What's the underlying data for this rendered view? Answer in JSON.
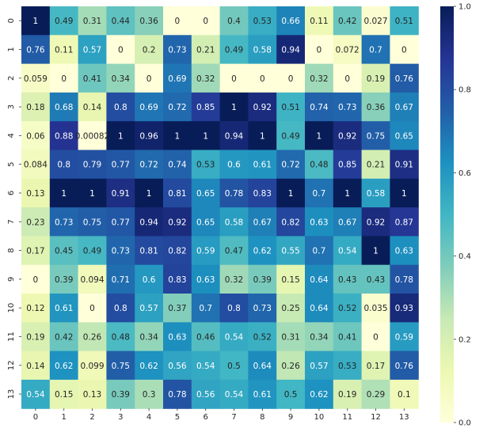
{
  "chart_data": {
    "type": "heatmap",
    "x_labels": [
      "0",
      "1",
      "2",
      "3",
      "4",
      "5",
      "6",
      "7",
      "8",
      "9",
      "10",
      "11",
      "12",
      "13"
    ],
    "y_labels": [
      "0",
      "1",
      "2",
      "3",
      "4",
      "5",
      "6",
      "7",
      "8",
      "9",
      "10",
      "11",
      "12",
      "13"
    ],
    "values": [
      [
        1,
        0.49,
        0.31,
        0.44,
        0.36,
        0,
        0,
        0.4,
        0.53,
        0.66,
        0.11,
        0.42,
        0.027,
        0.51
      ],
      [
        0.76,
        0.11,
        0.57,
        0,
        0.2,
        0.73,
        0.21,
        0.49,
        0.58,
        0.94,
        0,
        0.072,
        0.7,
        0
      ],
      [
        0.059,
        0,
        0.41,
        0.34,
        0,
        0.69,
        0.32,
        0,
        0,
        0,
        0.32,
        0,
        0.19,
        0.76
      ],
      [
        0.18,
        0.68,
        0.14,
        0.8,
        0.69,
        0.72,
        0.85,
        1,
        0.92,
        0.51,
        0.74,
        0.73,
        0.36,
        0.67
      ],
      [
        0.06,
        0.88,
        0.00082,
        1,
        0.96,
        1,
        1,
        0.94,
        1,
        0.49,
        1,
        0.92,
        0.75,
        0.65
      ],
      [
        0.084,
        0.8,
        0.79,
        0.77,
        0.72,
        0.74,
        0.53,
        0.6,
        0.61,
        0.72,
        0.48,
        0.85,
        0.21,
        0.91
      ],
      [
        0.13,
        1,
        1,
        0.91,
        1,
        0.81,
        0.65,
        0.78,
        0.83,
        1,
        0.7,
        1,
        0.58,
        1
      ],
      [
        0.23,
        0.73,
        0.75,
        0.77,
        0.94,
        0.92,
        0.65,
        0.58,
        0.67,
        0.82,
        0.63,
        0.67,
        0.92,
        0.87
      ],
      [
        0.17,
        0.45,
        0.49,
        0.73,
        0.81,
        0.82,
        0.59,
        0.47,
        0.62,
        0.55,
        0.7,
        0.54,
        1,
        0.63
      ],
      [
        0,
        0.39,
        0.094,
        0.71,
        0.6,
        0.83,
        0.63,
        0.32,
        0.39,
        0.15,
        0.64,
        0.43,
        0.43,
        0.78
      ],
      [
        0.12,
        0.61,
        0,
        0.8,
        0.57,
        0.37,
        0.7,
        0.8,
        0.73,
        0.25,
        0.64,
        0.52,
        0.035,
        0.93
      ],
      [
        0.19,
        0.42,
        0.26,
        0.48,
        0.34,
        0.63,
        0.46,
        0.54,
        0.52,
        0.31,
        0.34,
        0.41,
        0,
        0.59
      ],
      [
        0.14,
        0.62,
        0.099,
        0.75,
        0.62,
        0.56,
        0.54,
        0.5,
        0.64,
        0.26,
        0.57,
        0.53,
        0.17,
        0.76
      ],
      [
        0.54,
        0.15,
        0.13,
        0.39,
        0.3,
        0.78,
        0.56,
        0.54,
        0.61,
        0.5,
        0.62,
        0.19,
        0.29,
        0.1
      ]
    ],
    "value_labels": [
      [
        "1",
        "0.49",
        "0.31",
        "0.44",
        "0.36",
        "0",
        "0",
        "0.4",
        "0.53",
        "0.66",
        "0.11",
        "0.42",
        "0.027",
        "0.51"
      ],
      [
        "0.76",
        "0.11",
        "0.57",
        "0",
        "0.2",
        "0.73",
        "0.21",
        "0.49",
        "0.58",
        "0.94",
        "0",
        "0.072",
        "0.7",
        "0"
      ],
      [
        "0.059",
        "0",
        "0.41",
        "0.34",
        "0",
        "0.69",
        "0.32",
        "0",
        "0",
        "0",
        "0.32",
        "0",
        "0.19",
        "0.76"
      ],
      [
        "0.18",
        "0.68",
        "0.14",
        "0.8",
        "0.69",
        "0.72",
        "0.85",
        "1",
        "0.92",
        "0.51",
        "0.74",
        "0.73",
        "0.36",
        "0.67"
      ],
      [
        "0.06",
        "0.88",
        "0.00082",
        "1",
        "0.96",
        "1",
        "1",
        "0.94",
        "1",
        "0.49",
        "1",
        "0.92",
        "0.75",
        "0.65"
      ],
      [
        "0.084",
        "0.8",
        "0.79",
        "0.77",
        "0.72",
        "0.74",
        "0.53",
        "0.6",
        "0.61",
        "0.72",
        "0.48",
        "0.85",
        "0.21",
        "0.91"
      ],
      [
        "0.13",
        "1",
        "1",
        "0.91",
        "1",
        "0.81",
        "0.65",
        "0.78",
        "0.83",
        "1",
        "0.7",
        "1",
        "0.58",
        "1"
      ],
      [
        "0.23",
        "0.73",
        "0.75",
        "0.77",
        "0.94",
        "0.92",
        "0.65",
        "0.58",
        "0.67",
        "0.82",
        "0.63",
        "0.67",
        "0.92",
        "0.87"
      ],
      [
        "0.17",
        "0.45",
        "0.49",
        "0.73",
        "0.81",
        "0.82",
        "0.59",
        "0.47",
        "0.62",
        "0.55",
        "0.7",
        "0.54",
        "1",
        "0.63"
      ],
      [
        "0",
        "0.39",
        "0.094",
        "0.71",
        "0.6",
        "0.83",
        "0.63",
        "0.32",
        "0.39",
        "0.15",
        "0.64",
        "0.43",
        "0.43",
        "0.78"
      ],
      [
        "0.12",
        "0.61",
        "0",
        "0.8",
        "0.57",
        "0.37",
        "0.7",
        "0.8",
        "0.73",
        "0.25",
        "0.64",
        "0.52",
        "0.035",
        "0.93"
      ],
      [
        "0.19",
        "0.42",
        "0.26",
        "0.48",
        "0.34",
        "0.63",
        "0.46",
        "0.54",
        "0.52",
        "0.31",
        "0.34",
        "0.41",
        "0",
        "0.59"
      ],
      [
        "0.14",
        "0.62",
        "0.099",
        "0.75",
        "0.62",
        "0.56",
        "0.54",
        "0.5",
        "0.64",
        "0.26",
        "0.57",
        "0.53",
        "0.17",
        "0.76"
      ],
      [
        "0.54",
        "0.15",
        "0.13",
        "0.39",
        "0.3",
        "0.78",
        "0.56",
        "0.54",
        "0.61",
        "0.5",
        "0.62",
        "0.19",
        "0.29",
        "0.1"
      ]
    ],
    "value_range": [
      0,
      1
    ],
    "colormap": "YlGnBu",
    "colorbar": {
      "ticks": [
        0.0,
        0.2,
        0.4,
        0.6,
        0.8,
        1.0
      ],
      "tick_labels": [
        "0.0",
        "0.2",
        "0.4",
        "0.6",
        "0.8",
        "1.0"
      ],
      "placement": "right"
    },
    "grid": false,
    "title": "",
    "xlabel": "",
    "ylabel": ""
  }
}
